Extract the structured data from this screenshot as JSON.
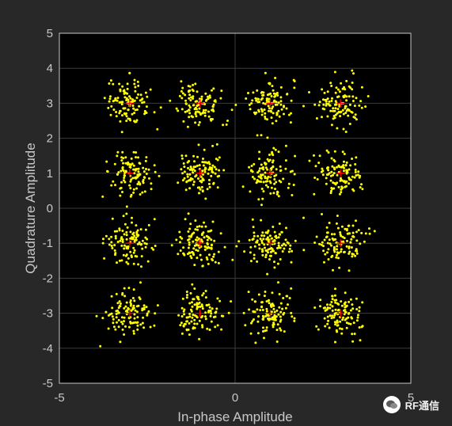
{
  "chart_data": {
    "type": "scatter",
    "title": "",
    "xlabel": "In-phase Amplitude",
    "ylabel": "Quadrature Amplitude",
    "xlim": [
      -5,
      5
    ],
    "ylim": [
      -5,
      5
    ],
    "xticks": [
      -5,
      0,
      5
    ],
    "yticks": [
      -5,
      -4,
      -3,
      -2,
      -1,
      0,
      1,
      2,
      3,
      4,
      5
    ],
    "grid": true,
    "constellation_points": [
      [
        -3,
        3
      ],
      [
        -1,
        3
      ],
      [
        1,
        3
      ],
      [
        3,
        3
      ],
      [
        -3,
        1
      ],
      [
        -1,
        1
      ],
      [
        1,
        1
      ],
      [
        3,
        1
      ],
      [
        -3,
        -1
      ],
      [
        -1,
        -1
      ],
      [
        1,
        -1
      ],
      [
        3,
        -1
      ],
      [
        -3,
        -3
      ],
      [
        -1,
        -3
      ],
      [
        1,
        -3
      ],
      [
        3,
        -3
      ]
    ],
    "noise_std": 0.32,
    "points_per_symbol": 110,
    "received_color": "#ffff00",
    "reference_color": "#ff0000",
    "plot_bg": "#000000",
    "figure_bg": "#282828",
    "grid_color": "#3c3c3c",
    "axis_color": "#c8c8c8"
  },
  "watermark": {
    "text": "RF通信"
  }
}
